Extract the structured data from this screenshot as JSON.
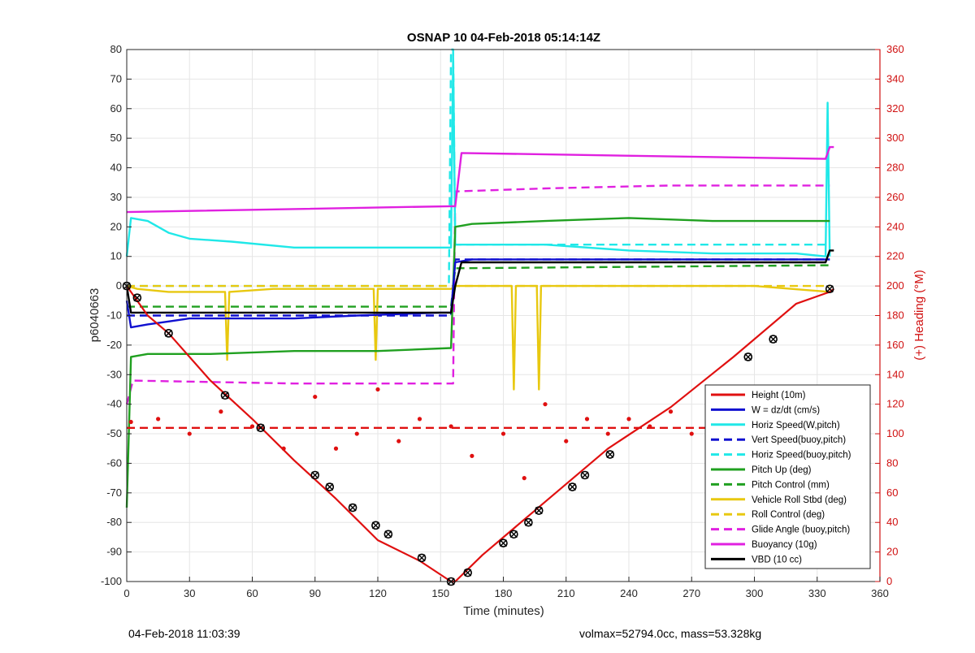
{
  "chart_data": {
    "type": "line",
    "title": "OSNAP 10 04-Feb-2018 05:14:14Z",
    "xlabel": "Time (minutes)",
    "ylabel": "p6040663",
    "y2label": "(+) Heading (°M)",
    "xlim": [
      0,
      360
    ],
    "ylim": [
      -100,
      80
    ],
    "y2lim": [
      0,
      360
    ],
    "xticks": [
      "0",
      "30",
      "60",
      "90",
      "120",
      "150",
      "180",
      "210",
      "240",
      "270",
      "300",
      "330",
      "360"
    ],
    "yticks": [
      "-100",
      "-90",
      "-80",
      "-70",
      "-60",
      "-50",
      "-40",
      "-30",
      "-20",
      "-10",
      "0",
      "10",
      "20",
      "30",
      "40",
      "50",
      "60",
      "70",
      "80"
    ],
    "y2ticks": [
      "0",
      "20",
      "40",
      "60",
      "80",
      "100",
      "120",
      "140",
      "160",
      "180",
      "200",
      "220",
      "240",
      "260",
      "280",
      "300",
      "320",
      "340",
      "360"
    ],
    "grid": true,
    "legend_position": "bottom-right",
    "colors": {
      "height": "#e01010",
      "w": "#1010d0",
      "cyan": "#20e8e8",
      "green": "#20a020",
      "yellow": "#e8c810",
      "magenta": "#e020e0",
      "black": "#000000",
      "heading": "#e01010",
      "axis_right": "#d01010"
    },
    "legend": [
      {
        "label": "Height (10m)",
        "color": "#e01010",
        "dash": "solid"
      },
      {
        "label": "W = dz/dt (cm/s)",
        "color": "#1010d0",
        "dash": "solid"
      },
      {
        "label": "Horiz Speed(W,pitch)",
        "color": "#20e8e8",
        "dash": "solid"
      },
      {
        "label": "Vert Speed(buoy,pitch)",
        "color": "#1010d0",
        "dash": "dashed"
      },
      {
        "label": "Horiz Speed(buoy,pitch)",
        "color": "#20e8e8",
        "dash": "dashed"
      },
      {
        "label": "Pitch Up (deg)",
        "color": "#20a020",
        "dash": "solid"
      },
      {
        "label": "Pitch Control (mm)",
        "color": "#20a020",
        "dash": "dashed"
      },
      {
        "label": "Vehicle Roll Stbd (deg)",
        "color": "#e8c810",
        "dash": "solid"
      },
      {
        "label": "Roll Control (deg)",
        "color": "#e8c810",
        "dash": "dashed"
      },
      {
        "label": "Glide Angle (buoy,pitch)",
        "color": "#e020e0",
        "dash": "dashed"
      },
      {
        "label": "Buoyancy (10g)",
        "color": "#e020e0",
        "dash": "solid"
      },
      {
        "label": "VBD (10 cc)",
        "color": "#000000",
        "dash": "solid"
      }
    ],
    "series": [
      {
        "name": "Height (10m)",
        "axis": "left",
        "x": [
          0,
          10,
          20,
          40,
          60,
          80,
          100,
          120,
          140,
          155,
          157,
          170,
          200,
          230,
          260,
          290,
          320,
          336,
          338
        ],
        "y": [
          0,
          -10,
          -16,
          -32,
          -45,
          -59,
          -72,
          -86,
          -93,
          -100,
          -100,
          -91,
          -73,
          -55,
          -41,
          -24,
          -6,
          -2,
          -1
        ]
      },
      {
        "name": "W = dz/dt (cm/s)",
        "axis": "left",
        "x": [
          0,
          2,
          10,
          20,
          30,
          50,
          80,
          110,
          150,
          155,
          157,
          165,
          200,
          240,
          280,
          320,
          336
        ],
        "y": [
          -5,
          -14,
          -13,
          -12,
          -11,
          -11,
          -11,
          -10,
          -9,
          -9,
          8,
          9,
          9,
          9,
          9,
          9,
          9
        ]
      },
      {
        "name": "Horiz Speed(W,pitch)",
        "axis": "left",
        "x": [
          0,
          2,
          10,
          20,
          30,
          50,
          80,
          110,
          150,
          155,
          156,
          157,
          165,
          200,
          240,
          280,
          320,
          334,
          335,
          336
        ],
        "y": [
          10,
          23,
          22,
          18,
          16,
          15,
          13,
          13,
          13,
          13,
          78,
          14,
          14,
          14,
          12,
          11,
          11,
          10,
          62,
          10
        ]
      },
      {
        "name": "Vert Speed(buoy,pitch)",
        "axis": "left",
        "x": [
          0,
          155,
          157,
          336
        ],
        "y": [
          -10,
          -10,
          9,
          9
        ]
      },
      {
        "name": "Horiz Speed(buoy,pitch)",
        "axis": "left",
        "x": [
          0,
          154,
          155,
          156,
          157,
          336
        ],
        "y": [
          0,
          0,
          80,
          80,
          14,
          14
        ]
      },
      {
        "name": "Pitch Up (deg)",
        "axis": "left",
        "x": [
          0,
          2,
          10,
          40,
          80,
          120,
          155,
          157,
          165,
          200,
          240,
          280,
          336
        ],
        "y": [
          -75,
          -24,
          -23,
          -23,
          -22,
          -22,
          -21,
          20,
          21,
          22,
          23,
          22,
          22
        ]
      },
      {
        "name": "Pitch Control (mm)",
        "axis": "left",
        "x": [
          0,
          5,
          60,
          120,
          155,
          157,
          336
        ],
        "y": [
          -7,
          -7,
          -7,
          -7,
          -7,
          6,
          7
        ]
      },
      {
        "name": "Vehicle Roll Stbd (deg)",
        "axis": "left",
        "x": [
          0,
          5,
          20,
          47,
          48,
          49,
          70,
          118,
          119,
          120,
          155,
          157,
          184,
          185,
          186,
          196,
          197,
          198,
          220,
          300,
          336
        ],
        "y": [
          0,
          -1,
          -2,
          -2,
          -25,
          -2,
          -1,
          -1,
          -25,
          -1,
          -1,
          0,
          0,
          -35,
          0,
          0,
          -35,
          0,
          0,
          0,
          -2
        ]
      },
      {
        "name": "Roll Control (deg)",
        "axis": "left",
        "x": [
          0,
          155,
          157,
          336
        ],
        "y": [
          0,
          0,
          0,
          0
        ]
      },
      {
        "name": "Glide Angle (buoy,pitch)",
        "axis": "left",
        "x": [
          0,
          3,
          80,
          155,
          156,
          157,
          200,
          260,
          336
        ],
        "y": [
          -40,
          -32,
          -33,
          -33,
          -33,
          32,
          33,
          34,
          34
        ]
      },
      {
        "name": "Buoyancy (10g)",
        "axis": "left",
        "x": [
          0,
          155,
          157,
          160,
          334,
          336,
          338
        ],
        "y": [
          25,
          27,
          27,
          45,
          43,
          47,
          47
        ]
      },
      {
        "name": "VBD (10 cc)",
        "axis": "left",
        "x": [
          0,
          2,
          155,
          157,
          160,
          334,
          336,
          338
        ],
        "y": [
          0,
          -9,
          -9,
          0,
          8,
          8,
          12,
          12
        ]
      },
      {
        "name": "(+) Heading (°M)",
        "axis": "right",
        "style": "dotted",
        "x": [
          2,
          15,
          30,
          45,
          60,
          75,
          90,
          100,
          110,
          120,
          130,
          140,
          155,
          165,
          180,
          190,
          200,
          210,
          220,
          230,
          240,
          250,
          260,
          270,
          280,
          290,
          300,
          315,
          330
        ],
        "y": [
          108,
          110,
          100,
          115,
          105,
          90,
          125,
          90,
          100,
          130,
          95,
          110,
          105,
          85,
          100,
          70,
          120,
          95,
          110,
          100,
          110,
          105,
          115,
          100,
          110,
          95,
          115,
          100,
          95
        ]
      },
      {
        "name": "Heading mean",
        "axis": "right",
        "style": "dashed",
        "x": [
          0,
          336
        ],
        "y": [
          104,
          104
        ]
      }
    ],
    "markers": {
      "series": "Height (10m)",
      "x": [
        0,
        5,
        20,
        47,
        64,
        90,
        97,
        108,
        119,
        125,
        141,
        155,
        163,
        180,
        185,
        192,
        197,
        213,
        219,
        231,
        297,
        309,
        336
      ],
      "y": [
        0,
        -4,
        -16,
        -37,
        -48,
        -64,
        -68,
        -75,
        -81,
        -84,
        -92,
        -100,
        -97,
        -87,
        -84,
        -80,
        -76,
        -68,
        -64,
        -57,
        -24,
        -18,
        -1
      ]
    }
  },
  "footer": {
    "left": "04-Feb-2018 11:03:39",
    "right": "volmax=52794.0cc, mass=53.328kg"
  }
}
